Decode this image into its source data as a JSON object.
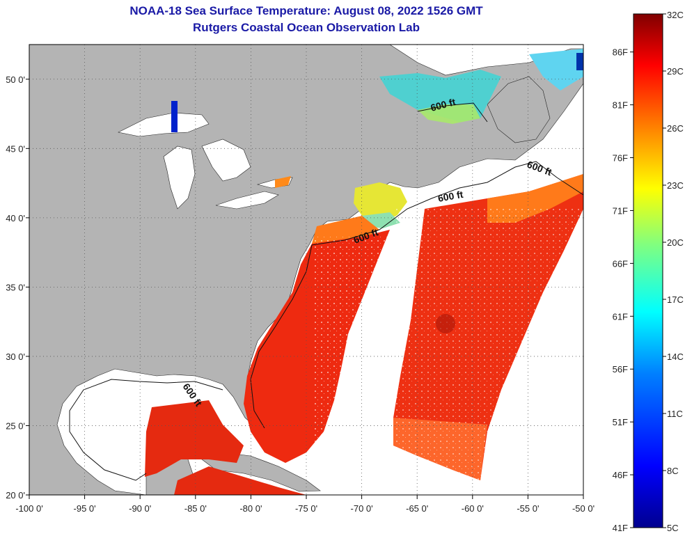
{
  "title": "NOAA-18 Sea Surface Temperature:  August 08, 2022 1526 GMT",
  "subtitle": "Rutgers Coastal Ocean Observation Lab",
  "map": {
    "lon_range": [
      -100,
      -50
    ],
    "lat_range": [
      20,
      52.5
    ],
    "lon_ticks": [
      "-100 0'",
      "-95 0'",
      "-90 0'",
      "-85 0'",
      "-80 0'",
      "-75 0'",
      "-70 0'",
      "-65 0'",
      "-60 0'",
      "-55 0'",
      "-50 0'"
    ],
    "lat_ticks": [
      "20 0'",
      "25 0'",
      "30 0'",
      "35 0'",
      "40 0'",
      "45 0'",
      "50 0'"
    ],
    "grid": "dotted",
    "land_color": "#b4b4b4",
    "ocean_nodata_color": "#ffffff",
    "contour_labels": [
      "600 ft",
      "600 ft",
      "600 ft",
      "600 ft",
      "600 ft"
    ]
  },
  "colorbar": {
    "celsius_labels": [
      "32C",
      "29C",
      "26C",
      "23C",
      "20C",
      "17C",
      "14C",
      "11C",
      "8C",
      "5C"
    ],
    "fahrenheit_labels": [
      "86F",
      "81F",
      "76F",
      "71F",
      "66F",
      "61F",
      "56F",
      "51F",
      "46F",
      "41F"
    ],
    "range_c": [
      5,
      32
    ],
    "range_f": [
      41,
      89.6
    ],
    "colors": [
      "#00008f",
      "#0000ff",
      "#0080ff",
      "#00ffff",
      "#80ff80",
      "#ffff00",
      "#ff8000",
      "#ff0000",
      "#800000"
    ]
  }
}
